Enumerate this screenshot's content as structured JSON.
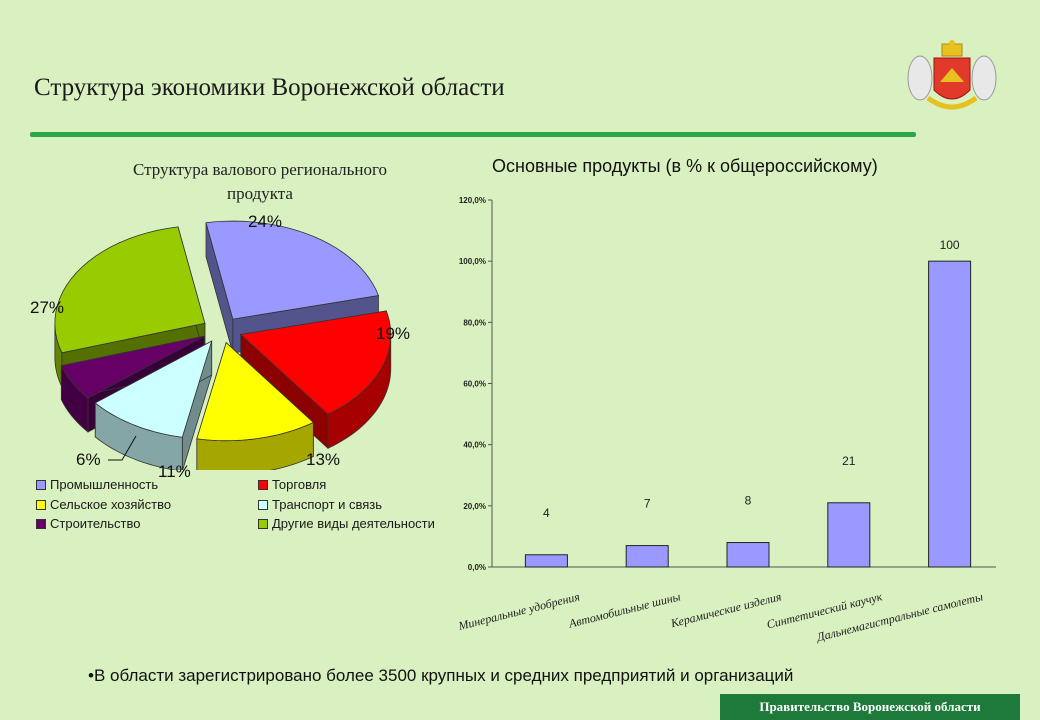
{
  "header": {
    "title": "Структура экономики Воронежской области"
  },
  "pie": {
    "title": "Структура валового регионального продукта",
    "slices": [
      {
        "label": "Промышленность",
        "percent_label": "24%",
        "value": 24,
        "color": "#9999ff"
      },
      {
        "label": "Торговля",
        "percent_label": "19%",
        "value": 19,
        "color": "#ff0000"
      },
      {
        "label": "Сельское хозяйство",
        "percent_label": "13%",
        "value": 13,
        "color": "#ffff00"
      },
      {
        "label": "Транспорт и связь",
        "percent_label": "11%",
        "value": 11,
        "color": "#ccffff"
      },
      {
        "label": "Строительство",
        "percent_label": "6%",
        "value": 6,
        "color": "#660066"
      },
      {
        "label": "Другие виды деятельности",
        "percent_label": "27%",
        "value": 27,
        "color": "#99cc00"
      }
    ]
  },
  "chart_data": {
    "type": "bar",
    "title": "Основные продукты (в % к общероссийскому)",
    "categories": [
      "Минеральные удобрения",
      "Автомобильные шины",
      "Керамические изделия",
      "Синтетический каучук",
      "Дальнемагистральные самолеты"
    ],
    "values": [
      4,
      7,
      8,
      21,
      100
    ],
    "data_labels": [
      "4",
      "7",
      "8",
      "21",
      "100"
    ],
    "y_ticks": [
      "0,0%",
      "20,0%",
      "40,0%",
      "60,0%",
      "80,0%",
      "100,0%",
      "120,0%"
    ],
    "ylim": [
      0,
      120
    ],
    "bar_color": "#9999ff",
    "grid": false
  },
  "footnote": "•В области зарегистрировано более 3500 крупных и средних предприятий и организаций",
  "footer": "Правительство Воронежской области"
}
